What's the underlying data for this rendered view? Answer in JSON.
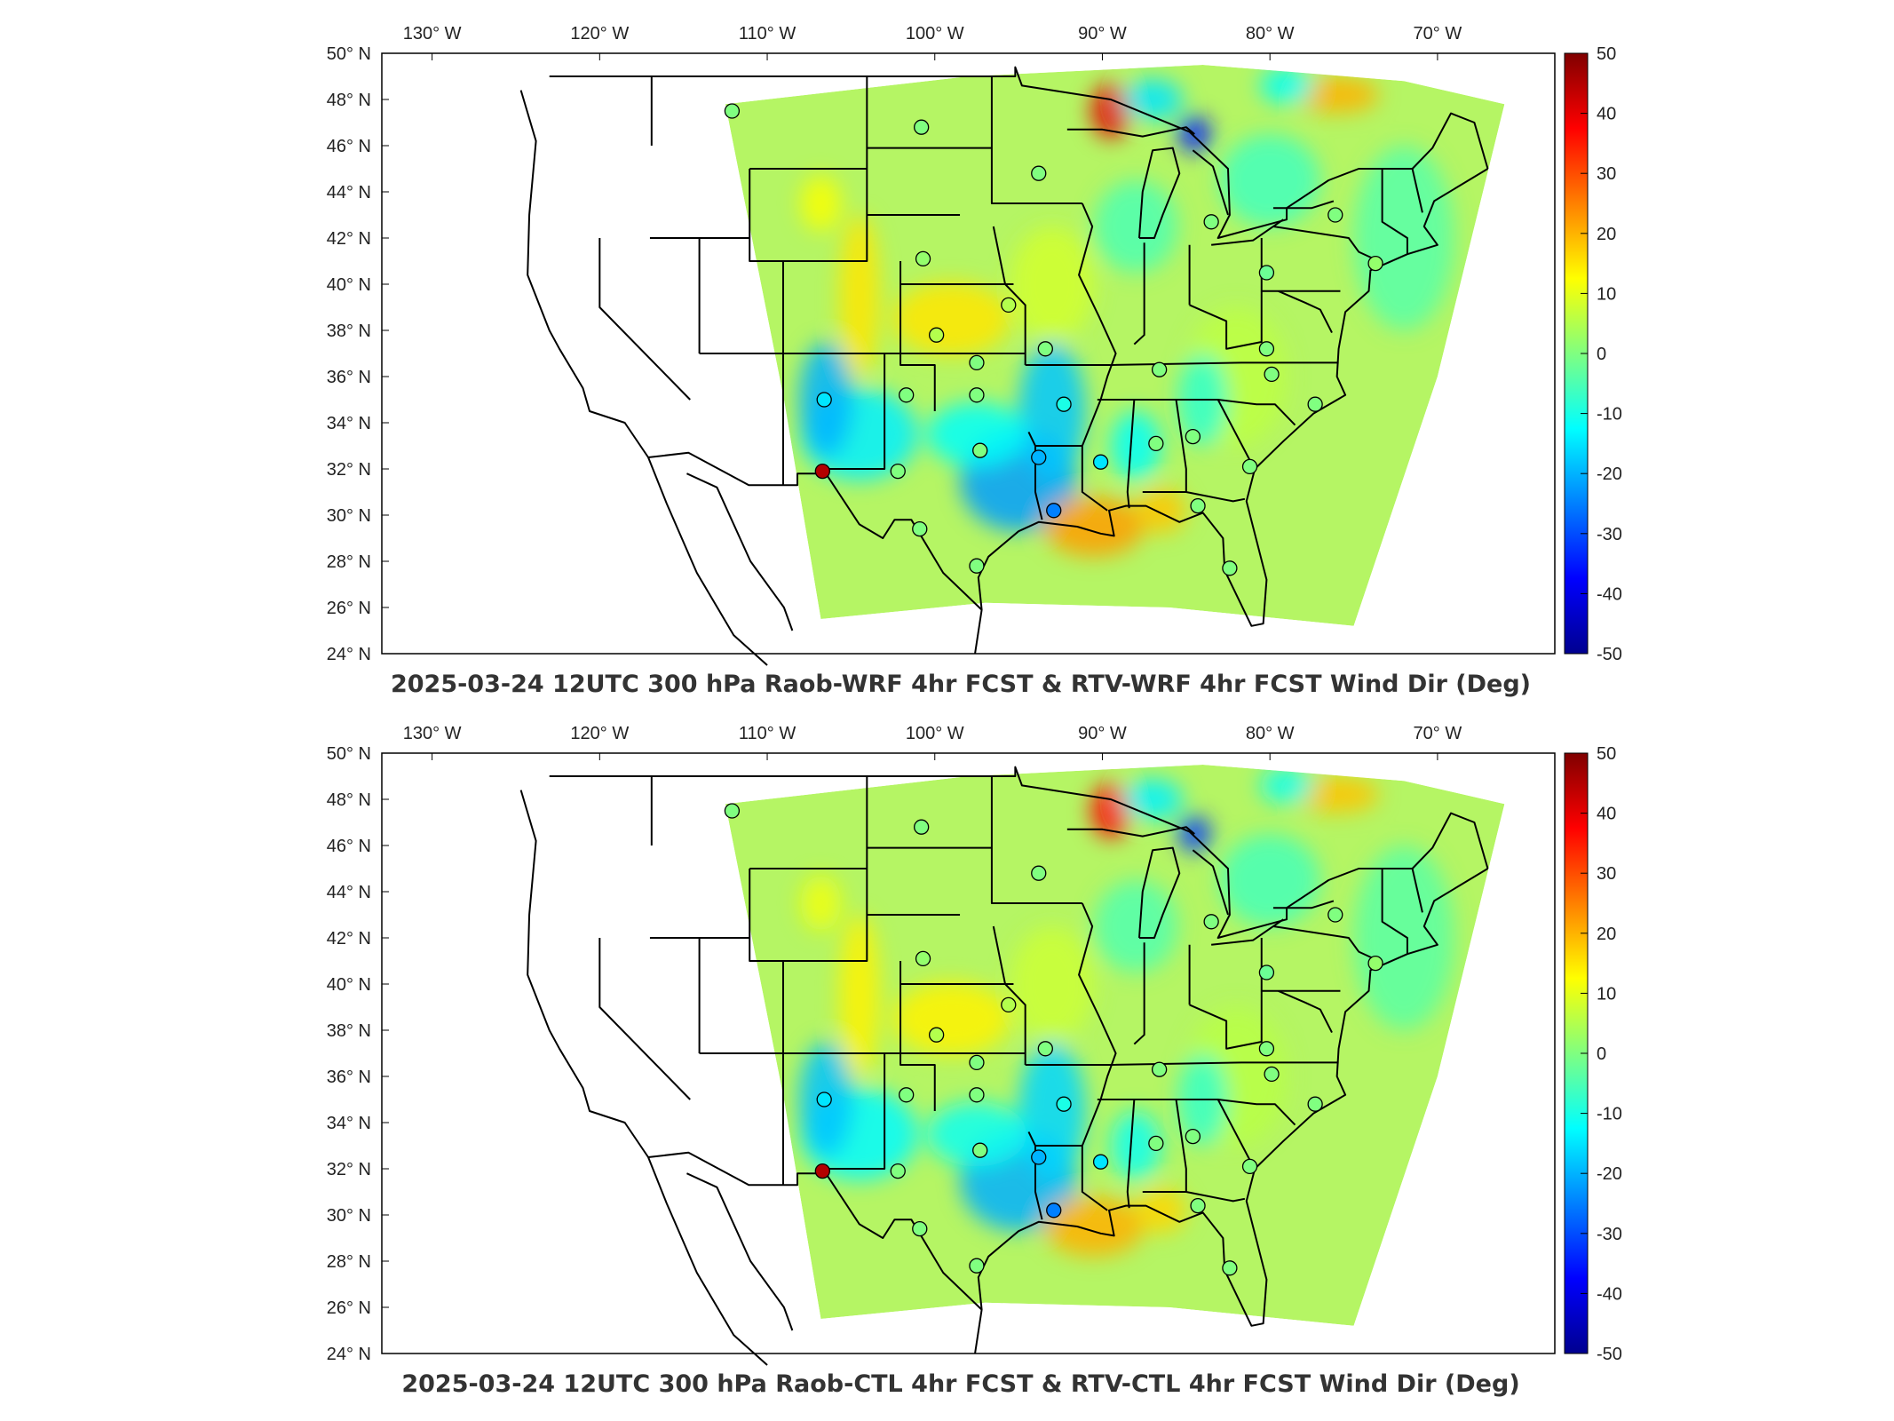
{
  "chart_data": [
    {
      "type": "heatmap",
      "title": "2025-03-24 12UTC 300 hPa Raob-WRF 4hr FCST & RTV-WRF 4hr FCST Wind Dir (Deg)",
      "lon_ticks": [
        "130° W",
        "120° W",
        "110° W",
        "100° W",
        "90° W",
        "80° W",
        "70° W"
      ],
      "lat_ticks": [
        "50° N",
        "48° N",
        "46° N",
        "44° N",
        "42° N",
        "40° N",
        "38° N",
        "36° N",
        "34° N",
        "32° N",
        "30° N",
        "28° N",
        "26° N",
        "24° N"
      ],
      "colorbar": {
        "min": -50,
        "max": 50,
        "ticks": [
          "50",
          "40",
          "30",
          "20",
          "10",
          "0",
          "-10",
          "-20",
          "-30",
          "-40",
          "-50"
        ]
      },
      "stations": [
        {
          "lon": -112.1,
          "lat": 47.5,
          "value": 0
        },
        {
          "lon": -100.8,
          "lat": 46.8,
          "value": 0
        },
        {
          "lon": -93.8,
          "lat": 44.8,
          "value": 0
        },
        {
          "lon": -83.5,
          "lat": 42.7,
          "value": 0
        },
        {
          "lon": -80.2,
          "lat": 40.5,
          "value": -2
        },
        {
          "lon": -76.1,
          "lat": 43.0,
          "value": 0
        },
        {
          "lon": -73.7,
          "lat": 40.9,
          "value": 2
        },
        {
          "lon": -100.7,
          "lat": 41.1,
          "value": 2
        },
        {
          "lon": -95.6,
          "lat": 39.1,
          "value": 5
        },
        {
          "lon": -99.9,
          "lat": 37.8,
          "value": 5
        },
        {
          "lon": -97.5,
          "lat": 36.6,
          "value": 0
        },
        {
          "lon": -93.4,
          "lat": 37.2,
          "value": 0
        },
        {
          "lon": -86.6,
          "lat": 36.3,
          "value": 0
        },
        {
          "lon": -80.2,
          "lat": 37.2,
          "value": 0
        },
        {
          "lon": -79.9,
          "lat": 36.1,
          "value": 0
        },
        {
          "lon": -77.3,
          "lat": 34.8,
          "value": 0
        },
        {
          "lon": -106.6,
          "lat": 35.0,
          "value": -15
        },
        {
          "lon": -101.7,
          "lat": 35.2,
          "value": 0
        },
        {
          "lon": -97.5,
          "lat": 35.2,
          "value": 0
        },
        {
          "lon": -92.3,
          "lat": 34.8,
          "value": -10
        },
        {
          "lon": -97.3,
          "lat": 32.8,
          "value": 0
        },
        {
          "lon": -102.2,
          "lat": 31.9,
          "value": 0
        },
        {
          "lon": -106.7,
          "lat": 31.9,
          "value": 45
        },
        {
          "lon": -93.8,
          "lat": 32.5,
          "value": -20
        },
        {
          "lon": -90.1,
          "lat": 32.3,
          "value": -15
        },
        {
          "lon": -86.8,
          "lat": 33.1,
          "value": 0
        },
        {
          "lon": -84.6,
          "lat": 33.4,
          "value": 0
        },
        {
          "lon": -81.2,
          "lat": 32.1,
          "value": 0
        },
        {
          "lon": -92.9,
          "lat": 30.2,
          "value": -25
        },
        {
          "lon": -84.3,
          "lat": 30.4,
          "value": 0
        },
        {
          "lon": -100.9,
          "lat": 29.4,
          "value": 0
        },
        {
          "lon": -97.5,
          "lat": 27.8,
          "value": 0
        },
        {
          "lon": -82.4,
          "lat": 27.7,
          "value": 0
        }
      ]
    },
    {
      "type": "heatmap",
      "title": "2025-03-24 12UTC 300 hPa Raob-CTL 4hr FCST & RTV-CTL 4hr FCST Wind Dir (Deg)",
      "lon_ticks": [
        "130° W",
        "120° W",
        "110° W",
        "100° W",
        "90° W",
        "80° W",
        "70° W"
      ],
      "lat_ticks": [
        "50° N",
        "48° N",
        "46° N",
        "44° N",
        "42° N",
        "40° N",
        "38° N",
        "36° N",
        "34° N",
        "32° N",
        "30° N",
        "28° N",
        "26° N",
        "24° N"
      ],
      "colorbar": {
        "min": -50,
        "max": 50,
        "ticks": [
          "50",
          "40",
          "30",
          "20",
          "10",
          "0",
          "-10",
          "-20",
          "-30",
          "-40",
          "-50"
        ]
      },
      "stations": [
        {
          "lon": -112.1,
          "lat": 47.5,
          "value": 0
        },
        {
          "lon": -100.8,
          "lat": 46.8,
          "value": 0
        },
        {
          "lon": -93.8,
          "lat": 44.8,
          "value": 0
        },
        {
          "lon": -83.5,
          "lat": 42.7,
          "value": 0
        },
        {
          "lon": -80.2,
          "lat": 40.5,
          "value": -2
        },
        {
          "lon": -76.1,
          "lat": 43.0,
          "value": 0
        },
        {
          "lon": -73.7,
          "lat": 40.9,
          "value": 2
        },
        {
          "lon": -100.7,
          "lat": 41.1,
          "value": 2
        },
        {
          "lon": -95.6,
          "lat": 39.1,
          "value": 5
        },
        {
          "lon": -99.9,
          "lat": 37.8,
          "value": 5
        },
        {
          "lon": -97.5,
          "lat": 36.6,
          "value": 0
        },
        {
          "lon": -93.4,
          "lat": 37.2,
          "value": 0
        },
        {
          "lon": -86.6,
          "lat": 36.3,
          "value": 0
        },
        {
          "lon": -80.2,
          "lat": 37.2,
          "value": 0
        },
        {
          "lon": -79.9,
          "lat": 36.1,
          "value": 0
        },
        {
          "lon": -77.3,
          "lat": 34.8,
          "value": 0
        },
        {
          "lon": -106.6,
          "lat": 35.0,
          "value": -15
        },
        {
          "lon": -101.7,
          "lat": 35.2,
          "value": 0
        },
        {
          "lon": -97.5,
          "lat": 35.2,
          "value": 0
        },
        {
          "lon": -92.3,
          "lat": 34.8,
          "value": -10
        },
        {
          "lon": -97.3,
          "lat": 32.8,
          "value": 0
        },
        {
          "lon": -102.2,
          "lat": 31.9,
          "value": 0
        },
        {
          "lon": -106.7,
          "lat": 31.9,
          "value": 45
        },
        {
          "lon": -93.8,
          "lat": 32.5,
          "value": -20
        },
        {
          "lon": -90.1,
          "lat": 32.3,
          "value": -15
        },
        {
          "lon": -86.8,
          "lat": 33.1,
          "value": 0
        },
        {
          "lon": -84.6,
          "lat": 33.4,
          "value": 0
        },
        {
          "lon": -81.2,
          "lat": 32.1,
          "value": 0
        },
        {
          "lon": -92.9,
          "lat": 30.2,
          "value": -25
        },
        {
          "lon": -84.3,
          "lat": 30.4,
          "value": 0
        },
        {
          "lon": -100.9,
          "lat": 29.4,
          "value": 0
        },
        {
          "lon": -97.5,
          "lat": 27.8,
          "value": 0
        },
        {
          "lon": -82.4,
          "lat": 27.7,
          "value": 0
        }
      ]
    }
  ],
  "colors": {
    "colormap": [
      "#00008f",
      "#0000ff",
      "#0080ff",
      "#00ffff",
      "#80ff80",
      "#ffff00",
      "#ff8000",
      "#ff0000",
      "#800000"
    ],
    "background_field": "#b5f564",
    "outline": "#000000"
  }
}
